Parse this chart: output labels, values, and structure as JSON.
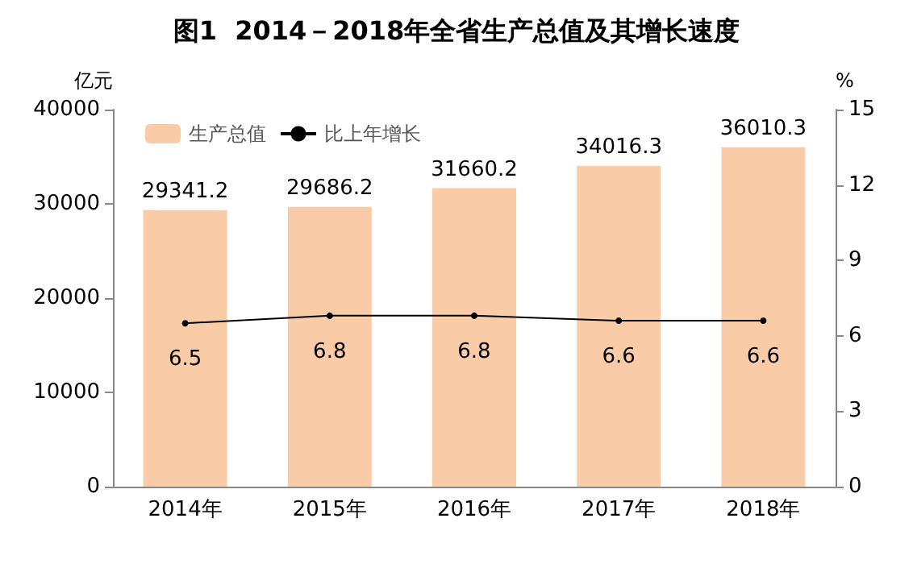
{
  "chart_data": {
    "type": "bar",
    "title": "图1  2014－2018年全省生产总值及其增长速度",
    "categories": [
      "2014年",
      "2015年",
      "2016年",
      "2017年",
      "2018年"
    ],
    "series": [
      {
        "name": "生产总值",
        "color": "#f9cba7",
        "values": [
          29341.2,
          29686.2,
          31660.2,
          34016.3,
          36010.3
        ]
      },
      {
        "name": "比上年增长",
        "type": "line",
        "axis": "y2",
        "color": "#000000",
        "values": [
          6.5,
          6.8,
          6.8,
          6.6,
          6.6
        ]
      }
    ],
    "ylabel": "亿元",
    "y2label": "%",
    "ylim": [
      0,
      40000
    ],
    "yticks": [
      0,
      10000,
      20000,
      30000,
      40000
    ],
    "y2lim": [
      0,
      15
    ],
    "y2ticks": [
      0,
      3,
      6,
      9,
      12,
      15
    ],
    "data_labels": true,
    "legend": "top left",
    "grid": false,
    "marker": "circle",
    "line_style": "solid"
  }
}
